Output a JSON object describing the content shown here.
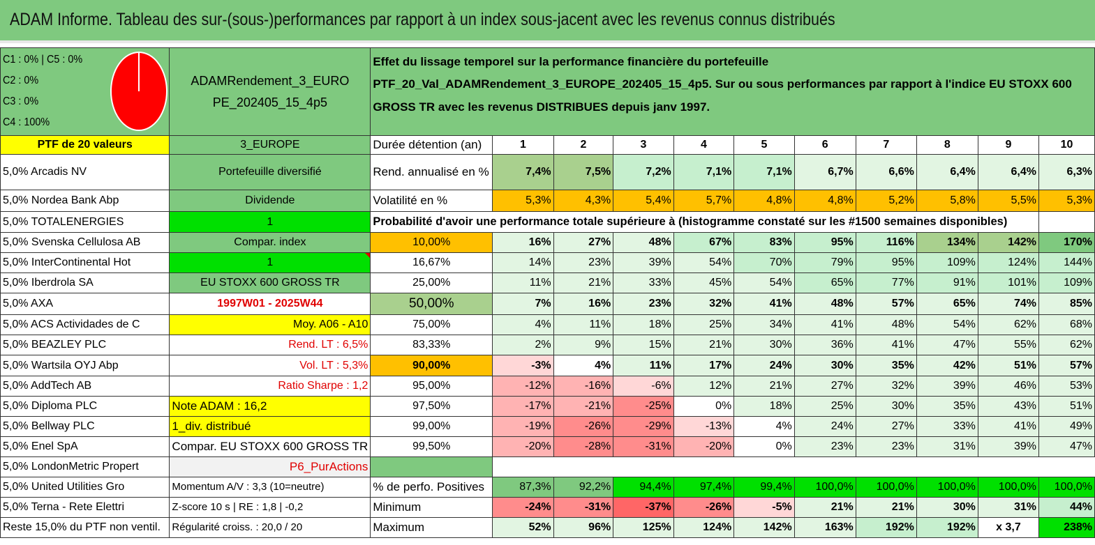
{
  "title": "ADAM Informe. Tableau des sur-(sous-)performances par rapport à un index sous-jacent avec les revenus connus distribués",
  "header": {
    "c_lines": [
      "C1 : 0% | C5 : 0%",
      "C2 : 0%",
      "C3 : 0%",
      "C4 : 100%"
    ],
    "portfolio_name_1": "ADAMRendement_3_EURO",
    "portfolio_name_2": "PE_202405_15_4p5",
    "desc_1": "Effet du lissage temporel sur la performance financière du portefeuille",
    "desc_2": "PTF_20_Val_ADAMRendement_3_EUROPE_202405_15_4p5. Sur ou sous performances par rapport à l'indice EU STOXX 600",
    "desc_3": "GROSS TR avec les revenus DISTRIBUES depuis janv 1997."
  },
  "colors": {
    "title_bg": "#7fc97f",
    "yellow": "#ffff00",
    "orange": "#ffc000",
    "green_bright": "#00e000",
    "red_text": "#e00000"
  },
  "row_dur": {
    "ptf": "PTF de 20 valeurs",
    "region": "3_EUROPE",
    "label": "Durée détention (an)",
    "years": [
      "1",
      "2",
      "3",
      "4",
      "5",
      "6",
      "7",
      "8",
      "9",
      "10"
    ]
  },
  "row_rend": {
    "holding": "5,0% Arcadis NV",
    "info": "Portefeuille diversifié",
    "label": "Rend. annualisé en %",
    "values": [
      "7,4%",
      "7,5%",
      "7,2%",
      "7,1%",
      "7,1%",
      "6,7%",
      "6,6%",
      "6,4%",
      "6,4%",
      "6,3%"
    ]
  },
  "row_vol": {
    "holding": "5,0% Nordea Bank Abp",
    "info": "Dividende",
    "label": "Volatilité en %",
    "values": [
      "5,3%",
      "4,3%",
      "5,4%",
      "5,7%",
      "4,8%",
      "4,8%",
      "5,2%",
      "5,8%",
      "5,5%",
      "5,3%"
    ]
  },
  "row_prob": {
    "holding": "5,0% TOTALENERGIES",
    "info": "1",
    "label": "Probabilité d'avoir une performance totale supérieure à (histogramme constaté sur les #1500 semaines disponibles)"
  },
  "prob_rows": [
    {
      "holding": "5,0% Svenska Cellulosa AB",
      "info": "Compar. index",
      "pct": "10,00%",
      "values": [
        "16%",
        "27%",
        "48%",
        "67%",
        "83%",
        "95%",
        "116%",
        "134%",
        "142%",
        "170%"
      ]
    },
    {
      "holding": "5,0% InterContinental Hot",
      "info": "1",
      "pct": "16,67%",
      "values": [
        "14%",
        "23%",
        "39%",
        "54%",
        "70%",
        "79%",
        "95%",
        "109%",
        "124%",
        "144%"
      ]
    },
    {
      "holding": "5,0% Iberdrola SA",
      "info": "EU STOXX 600 GROSS TR",
      "pct": "25,00%",
      "values": [
        "11%",
        "21%",
        "33%",
        "45%",
        "54%",
        "65%",
        "77%",
        "91%",
        "101%",
        "109%"
      ]
    },
    {
      "holding": "5,0% AXA",
      "info": "1997W01 - 2025W44",
      "pct": "50,00%",
      "values": [
        "7%",
        "16%",
        "23%",
        "32%",
        "41%",
        "48%",
        "57%",
        "65%",
        "74%",
        "85%"
      ]
    },
    {
      "holding": "5,0% ACS Actividades de C",
      "info": "Moy. A06 - A10",
      "pct": "75,00%",
      "values": [
        "4%",
        "11%",
        "18%",
        "25%",
        "34%",
        "41%",
        "48%",
        "54%",
        "62%",
        "68%"
      ]
    },
    {
      "holding": "5,0% BEAZLEY PLC",
      "info": "Rend. LT : 6,5%",
      "pct": "83,33%",
      "values": [
        "2%",
        "9%",
        "15%",
        "21%",
        "30%",
        "36%",
        "41%",
        "47%",
        "55%",
        "62%"
      ]
    },
    {
      "holding": "5,0% Wartsila OYJ Abp",
      "info": "Vol. LT : 5,3%",
      "pct": "90,00%",
      "values": [
        "-3%",
        "4%",
        "11%",
        "17%",
        "24%",
        "30%",
        "35%",
        "42%",
        "51%",
        "57%"
      ]
    },
    {
      "holding": "5,0% AddTech AB",
      "info": "Ratio Sharpe : 1,2",
      "pct": "95,00%",
      "values": [
        "-12%",
        "-16%",
        "-6%",
        "12%",
        "21%",
        "27%",
        "32%",
        "39%",
        "46%",
        "53%"
      ]
    },
    {
      "holding": "5,0% Diploma PLC",
      "info": "Note ADAM : 16,2",
      "pct": "97,50%",
      "values": [
        "-17%",
        "-21%",
        "-25%",
        "0%",
        "18%",
        "25%",
        "30%",
        "35%",
        "43%",
        "51%"
      ]
    },
    {
      "holding": "5,0% Bellway PLC",
      "info": "1_div. distribué",
      "pct": "99,00%",
      "values": [
        "-19%",
        "-26%",
        "-29%",
        "-13%",
        "4%",
        "24%",
        "27%",
        "33%",
        "41%",
        "49%"
      ]
    },
    {
      "holding": "5,0% Enel SpA",
      "info": "Compar. EU STOXX 600 GROSS TR",
      "pct": "99,50%",
      "values": [
        "-20%",
        "-28%",
        "-31%",
        "-20%",
        "0%",
        "23%",
        "23%",
        "31%",
        "39%",
        "47%"
      ]
    }
  ],
  "row_london": {
    "holding": "5,0% LondonMetric Propert",
    "info": "P6_PurActions"
  },
  "row_pos": {
    "holding": "5,0% United Utilities Gro",
    "info": "Momentum A/V : 3,3 (10=neutre)",
    "label": "% de perfo. Positives",
    "values": [
      "87,3%",
      "92,2%",
      "94,4%",
      "97,4%",
      "99,4%",
      "100,0%",
      "100,0%",
      "100,0%",
      "100,0%",
      "100,0%"
    ]
  },
  "row_min": {
    "holding": "5,0% Terna - Rete Elettri",
    "info": "Z-score 10 s | RE : 1,8 | -0,2",
    "label": "Minimum",
    "values": [
      "-24%",
      "-31%",
      "-37%",
      "-26%",
      "-5%",
      "21%",
      "21%",
      "30%",
      "31%",
      "44%"
    ]
  },
  "row_max": {
    "holding": "Reste 15,0% du PTF non ventil.",
    "info": "Régularité croiss. : 20,0 / 20",
    "label": "Maximum",
    "values": [
      "52%",
      "96%",
      "125%",
      "124%",
      "142%",
      "163%",
      "192%",
      "192%",
      "x 3,7",
      "238%"
    ]
  }
}
